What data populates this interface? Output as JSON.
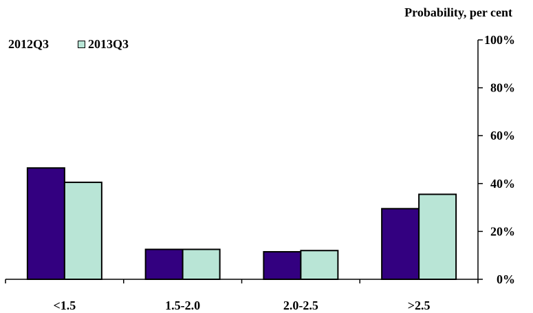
{
  "chart_data": {
    "type": "bar",
    "ylabel": "Probability, per cent",
    "categories": [
      "<1.5",
      "1.5-2.0",
      "2.0-2.5",
      ">2.5"
    ],
    "series": [
      {
        "name": "2012Q3",
        "color": "#330080",
        "values": [
          46.5,
          12.5,
          11.5,
          29.5
        ]
      },
      {
        "name": "2013Q3",
        "color": "#b9e5d6",
        "values": [
          40.5,
          12.5,
          12,
          35.5
        ]
      }
    ],
    "ylim": [
      0,
      100
    ],
    "yticks": [
      "0%",
      "20%",
      "40%",
      "60%",
      "80%",
      "100%"
    ],
    "y_axis_position": "right",
    "legend_position": "top-left",
    "grid": false
  }
}
